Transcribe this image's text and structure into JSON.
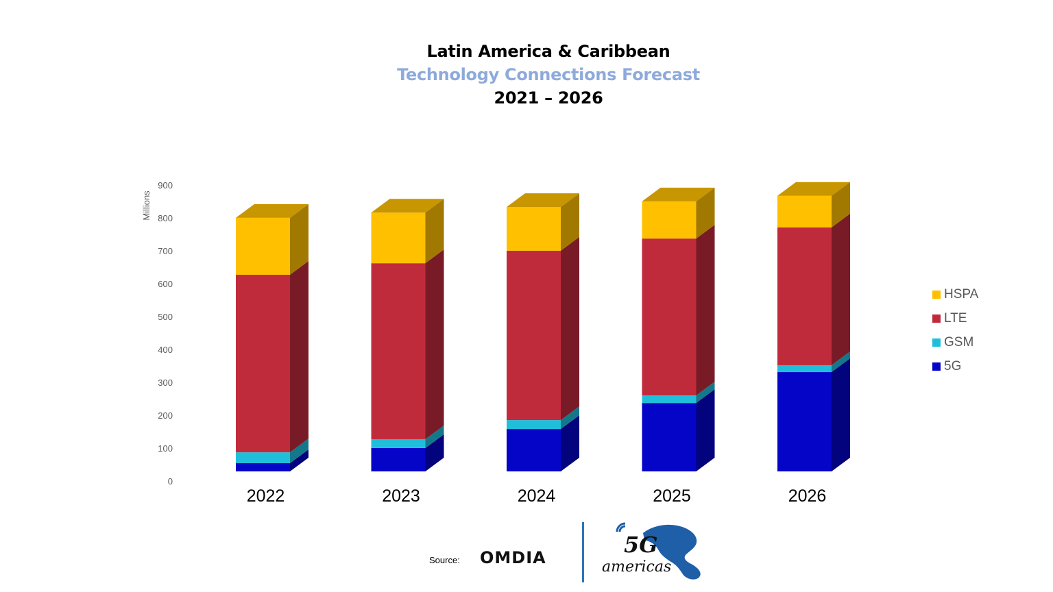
{
  "title": {
    "line1": "Latin America & Caribbean",
    "line2": "Technology Connections Forecast",
    "line3": "2021 – 2026"
  },
  "colors": {
    "HSPA": "#ffc000",
    "LTE": "#c02b3c",
    "GSM": "#1fbfdc",
    "5G": "#0505c8",
    "title_accent": "#8eaadb",
    "divider": "#2e75b6"
  },
  "chart_data": {
    "type": "bar",
    "stacked": true,
    "style": "3d-column",
    "title": "Latin America & Caribbean Technology Connections Forecast 2021 – 2026",
    "xlabel": "",
    "ylabel": "Millions",
    "ylim": [
      0,
      900
    ],
    "yticks": [
      0,
      100,
      200,
      300,
      400,
      500,
      600,
      700,
      800,
      900
    ],
    "categories": [
      "2022",
      "2023",
      "2024",
      "2025",
      "2026"
    ],
    "series": [
      {
        "name": "5G",
        "values": [
          25,
          71,
          129,
          208,
          302
        ]
      },
      {
        "name": "GSM",
        "values": [
          33,
          27,
          27,
          23,
          21
        ]
      },
      {
        "name": "LTE",
        "values": [
          540,
          535,
          515,
          477,
          419
        ]
      },
      {
        "name": "HSPA",
        "values": [
          173,
          154,
          133,
          113,
          96
        ]
      }
    ],
    "legend": {
      "position": "right",
      "order": [
        "HSPA",
        "LTE",
        "GSM",
        "5G"
      ]
    },
    "grid": false
  },
  "footer": {
    "source_label": "Source:",
    "source_brand": "OMDIA",
    "logo_text_top": "5G",
    "logo_text_bottom": "americas"
  }
}
